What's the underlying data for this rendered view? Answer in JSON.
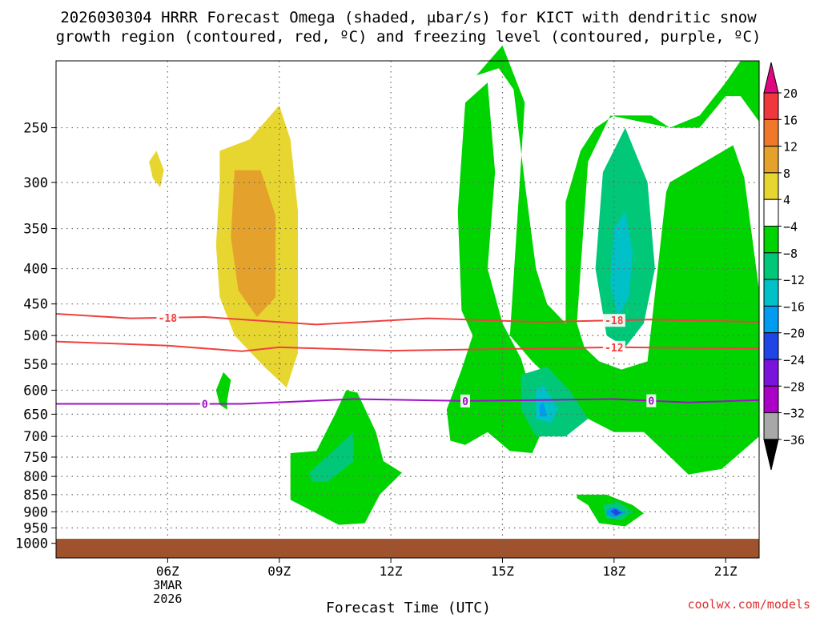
{
  "chart_data": {
    "type": "contour",
    "title_line1": "2026030304 HRRR Forecast Omega (shaded, μbar/s) for KICT with dendritic snow",
    "title_line2": "growth region (contoured, red, ºC) and freezing level (contoured, purple, ºC)",
    "xlabel": "Forecast Time (UTC)",
    "ylabel": "",
    "watermark": "coolwx.com/models",
    "x_ticks": [
      {
        "hour": 6,
        "label": "06Z",
        "sub1": "3MAR",
        "sub2": "2026"
      },
      {
        "hour": 9,
        "label": "09Z"
      },
      {
        "hour": 12,
        "label": "12Z"
      },
      {
        "hour": 15,
        "label": "15Z"
      },
      {
        "hour": 18,
        "label": "18Z"
      },
      {
        "hour": 21,
        "label": "21Z"
      }
    ],
    "xlim": [
      3,
      21.9
    ],
    "y_axis": "pressure (hPa), inverted, log-scale",
    "y_ticks": [
      250,
      300,
      350,
      400,
      450,
      500,
      550,
      600,
      650,
      700,
      750,
      800,
      850,
      900,
      950,
      1000
    ],
    "ylim": [
      200,
      1050
    ],
    "grid": "dotted",
    "colorbar": {
      "labels": [
        "20",
        "16",
        "12",
        "8",
        "4",
        "−4",
        "−8",
        "−12",
        "−16",
        "−20",
        "−24",
        "−28",
        "−32",
        "−36"
      ],
      "top_arrow_color": "#e0087e",
      "bottom_arrow_color": "#000000",
      "bins": [
        {
          "from": 16,
          "to": 20,
          "color": "#f0383c"
        },
        {
          "from": 12,
          "to": 16,
          "color": "#f0782a"
        },
        {
          "from": 8,
          "to": 12,
          "color": "#e4a22c"
        },
        {
          "from": 4,
          "to": 8,
          "color": "#e8d630"
        },
        {
          "from": -4,
          "to": 4,
          "color": "#ffffff"
        },
        {
          "from": -8,
          "to": -4,
          "color": "#00d400"
        },
        {
          "from": -12,
          "to": -8,
          "color": "#00c878"
        },
        {
          "from": -16,
          "to": -12,
          "color": "#00c0c8"
        },
        {
          "from": -20,
          "to": -16,
          "color": "#009cf0"
        },
        {
          "from": -24,
          "to": -20,
          "color": "#1e46e6"
        },
        {
          "from": -28,
          "to": -24,
          "color": "#7a14dc"
        },
        {
          "from": -32,
          "to": -28,
          "color": "#aa00c8"
        },
        {
          "from": -36,
          "to": -32,
          "color": "#a8a8a8"
        }
      ]
    },
    "ground": {
      "color": "#a0522d",
      "top_hPa": 985
    },
    "contours": [
      {
        "value": -18,
        "label": "-18",
        "color": "#f04040",
        "kind": "dendritic growth region",
        "label_hours": [
          6,
          18
        ],
        "points": [
          [
            3,
            465
          ],
          [
            5,
            472
          ],
          [
            7,
            470
          ],
          [
            10,
            482
          ],
          [
            13,
            472
          ],
          [
            16,
            478
          ],
          [
            19,
            474
          ],
          [
            22,
            478
          ]
        ]
      },
      {
        "value": -12,
        "label": "-12",
        "color": "#f04040",
        "kind": "dendritic growth region",
        "label_hours": [
          18
        ],
        "points": [
          [
            3,
            510
          ],
          [
            6,
            517
          ],
          [
            8,
            527
          ],
          [
            9,
            520
          ],
          [
            12,
            526
          ],
          [
            15,
            523
          ],
          [
            18,
            520
          ],
          [
            22,
            522
          ]
        ]
      },
      {
        "value": 0,
        "label": "0",
        "color": "#a010c8",
        "kind": "freezing level",
        "label_hours": [
          7,
          14,
          19
        ],
        "points": [
          [
            3,
            628
          ],
          [
            6,
            628
          ],
          [
            8,
            628
          ],
          [
            11,
            618
          ],
          [
            14,
            622
          ],
          [
            18,
            618
          ],
          [
            20,
            625
          ],
          [
            22,
            620
          ]
        ]
      }
    ],
    "omega_regions": [
      {
        "level": 4,
        "color": "#e8d630",
        "points": [
          [
            5.5,
            280
          ],
          [
            5.7,
            270
          ],
          [
            5.9,
            288
          ],
          [
            5.8,
            305
          ],
          [
            5.6,
            296
          ]
        ]
      },
      {
        "level": 4,
        "color": "#e8d630",
        "points": [
          [
            7.4,
            270
          ],
          [
            8.2,
            260
          ],
          [
            9.0,
            232
          ],
          [
            9.3,
            260
          ],
          [
            9.5,
            330
          ],
          [
            9.5,
            450
          ],
          [
            9.5,
            530
          ],
          [
            9.2,
            595
          ],
          [
            8.6,
            555
          ],
          [
            7.8,
            500
          ],
          [
            7.4,
            440
          ],
          [
            7.3,
            370
          ],
          [
            7.4,
            300
          ]
        ]
      },
      {
        "level": 8,
        "color": "#e4a22c",
        "points": [
          [
            7.8,
            288
          ],
          [
            8.5,
            288
          ],
          [
            8.9,
            335
          ],
          [
            8.9,
            440
          ],
          [
            8.4,
            470
          ],
          [
            7.9,
            430
          ],
          [
            7.7,
            360
          ]
        ]
      },
      {
        "level": -4,
        "color": "#00d400",
        "points": [
          [
            7.5,
            565
          ],
          [
            7.7,
            580
          ],
          [
            7.6,
            620
          ],
          [
            7.6,
            640
          ],
          [
            7.4,
            630
          ],
          [
            7.3,
            600
          ]
        ]
      },
      {
        "level": -4,
        "color": "#00d400",
        "points": [
          [
            10.0,
            735
          ],
          [
            10.5,
            650
          ],
          [
            10.8,
            600
          ],
          [
            11.1,
            605
          ],
          [
            11.6,
            690
          ],
          [
            11.8,
            760
          ],
          [
            12.3,
            790
          ],
          [
            11.7,
            850
          ],
          [
            11.3,
            935
          ],
          [
            10.6,
            940
          ],
          [
            9.3,
            865
          ],
          [
            9.3,
            740
          ]
        ]
      },
      {
        "level": -8,
        "color": "#00c878",
        "points": [
          [
            9.8,
            790
          ],
          [
            10.5,
            730
          ],
          [
            11.0,
            690
          ],
          [
            11.0,
            760
          ],
          [
            10.3,
            815
          ],
          [
            9.9,
            815
          ]
        ]
      },
      {
        "level": -4,
        "color": "#00d400",
        "points": [
          [
            14.3,
            210
          ],
          [
            15.0,
            190
          ],
          [
            15.6,
            230
          ],
          [
            15.2,
            500
          ],
          [
            15.8,
            545
          ],
          [
            16.6,
            600
          ],
          [
            17.3,
            660
          ],
          [
            18.0,
            690
          ],
          [
            18.8,
            690
          ],
          [
            19.4,
            740
          ],
          [
            20.0,
            795
          ],
          [
            20.9,
            780
          ],
          [
            21.9,
            700
          ],
          [
            21.9,
            430
          ],
          [
            21.5,
            295
          ],
          [
            21.2,
            265
          ],
          [
            19.5,
            300
          ],
          [
            19.4,
            310
          ],
          [
            18.9,
            545
          ],
          [
            18.2,
            560
          ],
          [
            17.6,
            545
          ],
          [
            17.2,
            520
          ],
          [
            17.0,
            480
          ],
          [
            17.3,
            280
          ],
          [
            17.9,
            240
          ],
          [
            19.5,
            250
          ],
          [
            20.3,
            250
          ],
          [
            21.0,
            225
          ],
          [
            21.4,
            225
          ],
          [
            21.9,
            245
          ],
          [
            21.9,
            200
          ],
          [
            21.4,
            200
          ],
          [
            21.0,
            215
          ],
          [
            20.3,
            240
          ],
          [
            19.5,
            250
          ],
          [
            19.0,
            240
          ],
          [
            18.0,
            240
          ],
          [
            17.5,
            250
          ],
          [
            17.1,
            270
          ],
          [
            16.7,
            320
          ],
          [
            16.7,
            480
          ],
          [
            16.2,
            450
          ],
          [
            15.9,
            400
          ],
          [
            15.6,
            300
          ],
          [
            15.3,
            220
          ],
          [
            14.9,
            205
          ]
        ]
      },
      {
        "level": -4,
        "color": "#00d400",
        "points": [
          [
            14.0,
            230
          ],
          [
            14.6,
            215
          ],
          [
            14.8,
            290
          ],
          [
            14.6,
            400
          ],
          [
            15.0,
            480
          ],
          [
            15.5,
            540
          ],
          [
            15.8,
            610
          ],
          [
            16.0,
            700
          ],
          [
            15.8,
            740
          ],
          [
            15.2,
            735
          ],
          [
            14.6,
            690
          ],
          [
            14.0,
            720
          ],
          [
            13.6,
            710
          ],
          [
            13.5,
            640
          ],
          [
            13.9,
            560
          ],
          [
            14.2,
            500
          ],
          [
            13.9,
            460
          ],
          [
            13.8,
            330
          ]
        ]
      },
      {
        "level": -8,
        "color": "#00c878",
        "points": [
          [
            15.5,
            570
          ],
          [
            16.2,
            555
          ],
          [
            16.8,
            600
          ],
          [
            17.3,
            660
          ],
          [
            16.7,
            700
          ],
          [
            15.9,
            700
          ],
          [
            15.5,
            640
          ]
        ]
      },
      {
        "level": -12,
        "color": "#00c0c8",
        "points": [
          [
            15.9,
            600
          ],
          [
            16.1,
            590
          ],
          [
            16.5,
            640
          ],
          [
            16.3,
            670
          ],
          [
            15.9,
            660
          ]
        ]
      },
      {
        "level": -16,
        "color": "#009cf0",
        "points": [
          [
            16.0,
            630
          ],
          [
            16.1,
            625
          ],
          [
            16.2,
            655
          ],
          [
            16.0,
            655
          ]
        ]
      },
      {
        "level": -8,
        "color": "#00c878",
        "points": [
          [
            17.7,
            290
          ],
          [
            18.3,
            250
          ],
          [
            18.9,
            300
          ],
          [
            19.1,
            400
          ],
          [
            18.8,
            480
          ],
          [
            18.3,
            520
          ],
          [
            17.8,
            500
          ],
          [
            17.5,
            400
          ]
        ]
      },
      {
        "level": -12,
        "color": "#00c0c8",
        "points": [
          [
            18.0,
            350
          ],
          [
            18.3,
            330
          ],
          [
            18.5,
            380
          ],
          [
            18.4,
            440
          ],
          [
            18.1,
            470
          ],
          [
            17.9,
            420
          ]
        ]
      },
      {
        "level": -4,
        "color": "#00d400",
        "points": [
          [
            17.0,
            850
          ],
          [
            17.8,
            850
          ],
          [
            18.5,
            880
          ],
          [
            18.8,
            905
          ],
          [
            18.3,
            945
          ],
          [
            17.6,
            935
          ],
          [
            17.3,
            880
          ],
          [
            17.0,
            860
          ]
        ]
      },
      {
        "level": -8,
        "color": "#00c878",
        "points": [
          [
            17.7,
            880
          ],
          [
            18.1,
            870
          ],
          [
            18.5,
            900
          ],
          [
            18.2,
            925
          ],
          [
            17.8,
            920
          ]
        ]
      },
      {
        "level": -16,
        "color": "#009cf0",
        "points": [
          [
            17.8,
            895
          ],
          [
            18.0,
            885
          ],
          [
            18.3,
            903
          ],
          [
            18.0,
            918
          ],
          [
            17.8,
            910
          ]
        ]
      },
      {
        "level": -20,
        "color": "#1e46e6",
        "points": [
          [
            17.9,
            898
          ],
          [
            18.05,
            892
          ],
          [
            18.2,
            903
          ],
          [
            18.05,
            912
          ]
        ]
      }
    ]
  }
}
